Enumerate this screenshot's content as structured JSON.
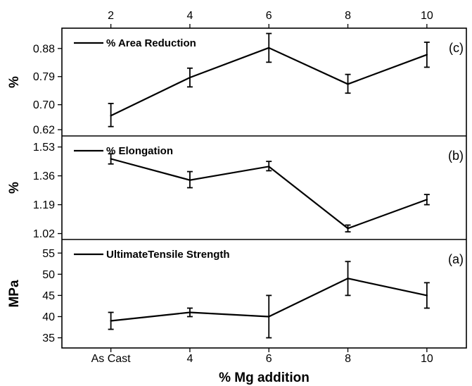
{
  "chart_data": [
    {
      "type": "line",
      "panel": "c",
      "panel_tag": "(c)",
      "ylabel": "%",
      "legend": "% Area Reduction",
      "legend_position": "top-left",
      "ylim": [
        0.6,
        0.945
      ],
      "yticks": [
        0.62,
        0.7,
        0.79,
        0.88
      ],
      "ytick_labels": [
        "0.62",
        "0.70",
        "0.79",
        "0.88"
      ],
      "x": [
        2,
        4,
        6,
        8,
        10
      ],
      "series": [
        {
          "name": "% Area Reduction",
          "values": [
            0.665,
            0.787,
            0.882,
            0.766,
            0.86
          ],
          "err_low": [
            0.63,
            0.757,
            0.836,
            0.737,
            0.82
          ],
          "err_high": [
            0.704,
            0.817,
            0.928,
            0.797,
            0.9
          ]
        }
      ]
    },
    {
      "type": "line",
      "panel": "b",
      "panel_tag": "(b)",
      "ylabel": "%",
      "legend": "% Elongation",
      "legend_position": "top-left",
      "ylim": [
        0.985,
        1.595
      ],
      "yticks": [
        1.02,
        1.19,
        1.36,
        1.53
      ],
      "ytick_labels": [
        "1.02",
        "1.19",
        "1.36",
        "1.53"
      ],
      "x": [
        2,
        4,
        6,
        8,
        10
      ],
      "series": [
        {
          "name": "% Elongation",
          "values": [
            1.46,
            1.335,
            1.415,
            1.05,
            1.22
          ],
          "err_low": [
            1.43,
            1.29,
            1.39,
            1.03,
            1.19
          ],
          "err_high": [
            1.49,
            1.385,
            1.445,
            1.07,
            1.25
          ]
        }
      ]
    },
    {
      "type": "line",
      "panel": "a",
      "panel_tag": "(a)",
      "ylabel": "MPa",
      "xlabel": "% Mg addition",
      "legend": "UltimateTensile Strength",
      "legend_position": "top-left",
      "ylim": [
        32.6,
        58.2
      ],
      "yticks": [
        35,
        40,
        45,
        50,
        55
      ],
      "ytick_labels": [
        "35",
        "40",
        "45",
        "50",
        "55"
      ],
      "x": [
        2,
        4,
        6,
        8,
        10
      ],
      "series": [
        {
          "name": "UltimateTensile Strength",
          "values": [
            39.0,
            41.0,
            40.0,
            49.0,
            45.0
          ],
          "err_low": [
            37.0,
            40.0,
            35.0,
            45.0,
            42.0
          ],
          "err_high": [
            41.0,
            42.0,
            45.0,
            53.0,
            48.0
          ]
        }
      ]
    }
  ],
  "x_axis": {
    "xlim": [
      0.76,
      11.0
    ],
    "top_tick_values": [
      2,
      4,
      6,
      8,
      10
    ],
    "top_tick_labels": [
      "2",
      "4",
      "6",
      "8",
      "10"
    ],
    "bottom_tick_values": [
      2,
      4,
      6,
      8,
      10
    ],
    "bottom_tick_labels": [
      "As Cast",
      "4",
      "6",
      "8",
      "10"
    ],
    "xlabel": "% Mg addition"
  }
}
